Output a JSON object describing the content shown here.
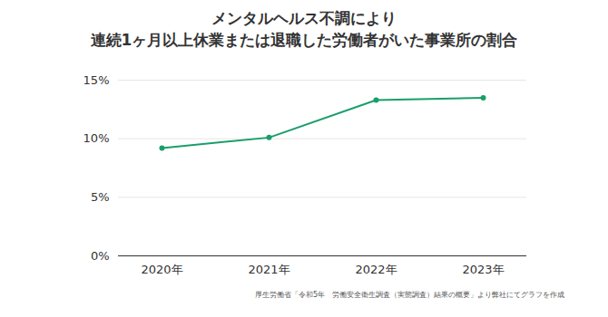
{
  "chart_data": {
    "type": "line",
    "title": "メンタルヘルス不調により\n連続1ヶ月以上休業または退職した労働者がいた事業所の割合",
    "caption": "厚生労働省「令和5年　労働安全衛生調査（実態調査）結果の概要」より弊社にてグラフを作成",
    "categories": [
      "2020年",
      "2021年",
      "2022年",
      "2023年"
    ],
    "values": [
      9.2,
      10.1,
      13.3,
      13.5
    ],
    "color": "#1a9e6a",
    "marker": "circle",
    "ylim": [
      0,
      15
    ],
    "yticks": [
      {
        "value": 0,
        "label": "0%"
      },
      {
        "value": 5,
        "label": "5%"
      },
      {
        "value": 10,
        "label": "10%"
      },
      {
        "value": 15,
        "label": "15%"
      }
    ],
    "grid": true
  }
}
